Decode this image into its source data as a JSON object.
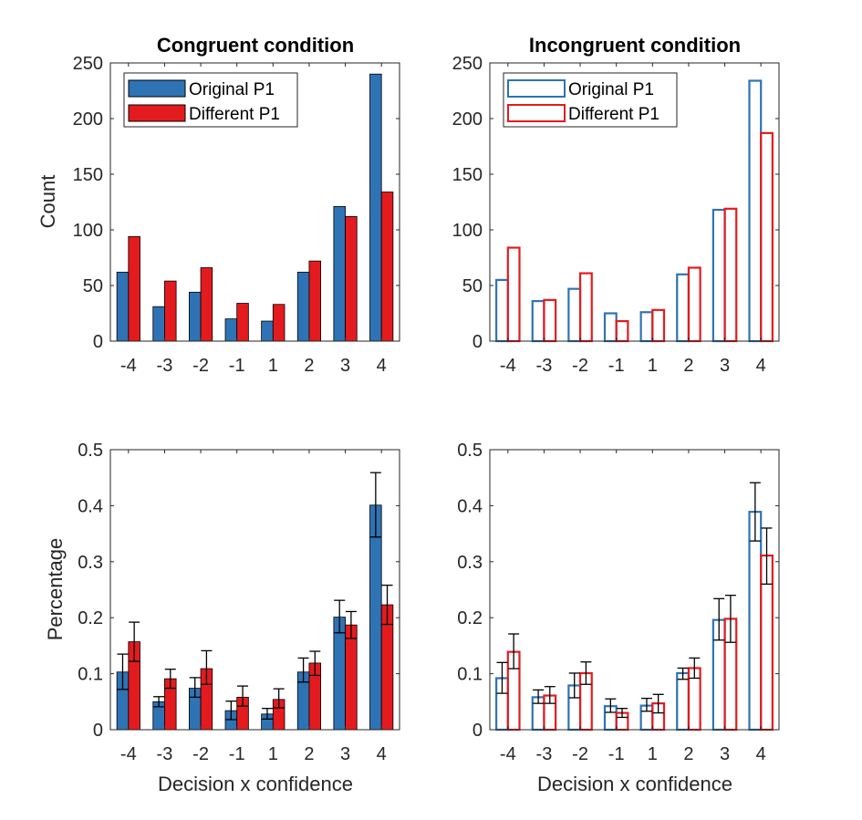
{
  "figure": {
    "colors": {
      "original": "#2E73B4",
      "different": "#E31B1E",
      "axis": "#262626",
      "errorbar": "#000000"
    }
  },
  "chart_data": [
    {
      "id": "congruent-count",
      "type": "bar",
      "title": "Congruent condition",
      "xlabel": "",
      "ylabel": "Count",
      "fill": true,
      "categories": [
        "-4",
        "-3",
        "-2",
        "-1",
        "1",
        "2",
        "3",
        "4"
      ],
      "ylim": [
        0,
        250
      ],
      "yticks": [
        "0",
        "50",
        "100",
        "150",
        "200",
        "250"
      ],
      "legend": {
        "placement": "top-left",
        "entries": [
          "Original P1",
          "Different P1"
        ]
      },
      "series": [
        {
          "name": "Original P1",
          "values": [
            62,
            31,
            44,
            20,
            18,
            62,
            121,
            240
          ]
        },
        {
          "name": "Different P1",
          "values": [
            94,
            54,
            66,
            34,
            33,
            72,
            112,
            134
          ]
        }
      ]
    },
    {
      "id": "incongruent-count",
      "type": "bar",
      "title": "Incongruent condition",
      "xlabel": "",
      "ylabel": "",
      "fill": false,
      "categories": [
        "-4",
        "-3",
        "-2",
        "-1",
        "1",
        "2",
        "3",
        "4"
      ],
      "ylim": [
        0,
        250
      ],
      "yticks": [
        "0",
        "50",
        "100",
        "150",
        "200",
        "250"
      ],
      "legend": {
        "placement": "top-left",
        "entries": [
          "Original P1",
          "Different P1"
        ]
      },
      "series": [
        {
          "name": "Original P1",
          "values": [
            55,
            36,
            47,
            25,
            26,
            60,
            118,
            234
          ]
        },
        {
          "name": "Different P1",
          "values": [
            84,
            37,
            61,
            18,
            28,
            66,
            119,
            187
          ]
        }
      ]
    },
    {
      "id": "congruent-percentage",
      "type": "bar",
      "title": "",
      "xlabel": "Decision x confidence",
      "ylabel": "Percentage",
      "fill": true,
      "categories": [
        "-4",
        "-3",
        "-2",
        "-1",
        "1",
        "2",
        "3",
        "4"
      ],
      "ylim": [
        0,
        0.5
      ],
      "yticks": [
        "0",
        "0.1",
        "0.2",
        "0.3",
        "0.4",
        "0.5"
      ],
      "series": [
        {
          "name": "Original P1",
          "values": [
            0.103,
            0.05,
            0.074,
            0.034,
            0.028,
            0.103,
            0.201,
            0.401
          ],
          "err_low": [
            0.072,
            0.041,
            0.058,
            0.018,
            0.019,
            0.085,
            0.173,
            0.344
          ],
          "err_high": [
            0.135,
            0.059,
            0.093,
            0.051,
            0.038,
            0.128,
            0.231,
            0.459
          ]
        },
        {
          "name": "Different P1",
          "values": [
            0.157,
            0.091,
            0.109,
            0.058,
            0.054,
            0.119,
            0.187,
            0.223
          ],
          "err_low": [
            0.122,
            0.074,
            0.081,
            0.042,
            0.039,
            0.097,
            0.163,
            0.188
          ],
          "err_high": [
            0.192,
            0.108,
            0.141,
            0.078,
            0.073,
            0.14,
            0.211,
            0.258
          ]
        }
      ]
    },
    {
      "id": "incongruent-percentage",
      "type": "bar",
      "title": "",
      "xlabel": "Decision x confidence",
      "ylabel": "",
      "fill": false,
      "categories": [
        "-4",
        "-3",
        "-2",
        "-1",
        "1",
        "2",
        "3",
        "4"
      ],
      "ylim": [
        0,
        0.5
      ],
      "yticks": [
        "0",
        "0.1",
        "0.2",
        "0.3",
        "0.4",
        "0.5"
      ],
      "series": [
        {
          "name": "Original P1",
          "values": [
            0.092,
            0.058,
            0.079,
            0.042,
            0.043,
            0.101,
            0.196,
            0.389
          ],
          "err_low": [
            0.065,
            0.047,
            0.057,
            0.031,
            0.033,
            0.09,
            0.16,
            0.337
          ],
          "err_high": [
            0.12,
            0.071,
            0.101,
            0.055,
            0.056,
            0.11,
            0.234,
            0.441
          ]
        },
        {
          "name": "Different P1",
          "values": [
            0.139,
            0.061,
            0.101,
            0.03,
            0.047,
            0.11,
            0.198,
            0.311
          ],
          "err_low": [
            0.109,
            0.047,
            0.081,
            0.022,
            0.03,
            0.092,
            0.156,
            0.26
          ],
          "err_high": [
            0.171,
            0.077,
            0.121,
            0.038,
            0.063,
            0.128,
            0.24,
            0.36
          ]
        }
      ]
    }
  ]
}
